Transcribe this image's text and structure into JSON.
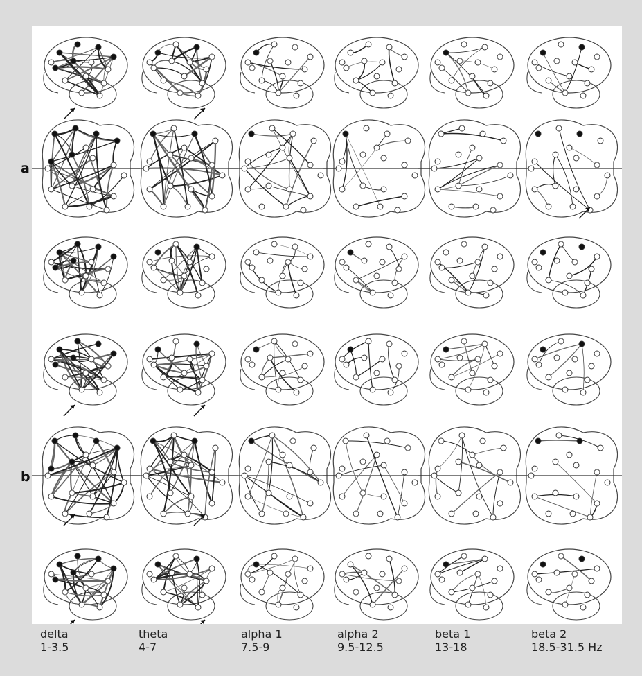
{
  "group_labels": [
    "a",
    "b"
  ],
  "bands": [
    {
      "name": "delta",
      "range": "1-3.5"
    },
    {
      "name": "theta",
      "range": "4-7"
    },
    {
      "name": "alpha 1",
      "range": "7.5-9"
    },
    {
      "name": "alpha 2",
      "range": "9.5-12.5"
    },
    {
      "name": "beta 1",
      "range": "13-18"
    },
    {
      "name": "beta 2",
      "range": "18.5-31.5 Hz"
    }
  ],
  "rows": [
    {
      "group": "a",
      "view": "lateral"
    },
    {
      "group": "a",
      "view": "top"
    },
    {
      "group": "a",
      "view": "lateral"
    },
    {
      "group": "b",
      "view": "lateral"
    },
    {
      "group": "b",
      "view": "top"
    },
    {
      "group": "b",
      "view": "lateral"
    }
  ]
}
